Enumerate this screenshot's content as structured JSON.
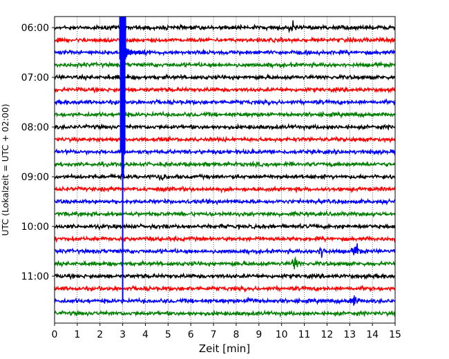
{
  "chart_data": {
    "type": "line",
    "subtype": "helicorder",
    "title": "",
    "xlabel": "Zeit  [min]",
    "ylabel": "UTC (Lokalzeit = UTC + 02:00)",
    "xlim": [
      0,
      15
    ],
    "x_ticks": [
      0,
      1,
      2,
      3,
      4,
      5,
      6,
      7,
      8,
      9,
      10,
      11,
      12,
      13,
      14,
      15
    ],
    "x_tick_labels": [
      "0",
      "1",
      "2",
      "3",
      "4",
      "5",
      "6",
      "7",
      "8",
      "9",
      "10",
      "11",
      "12",
      "13",
      "14",
      "15"
    ],
    "y_tick_labels": [
      "06:00",
      "07:00",
      "08:00",
      "09:00",
      "10:00",
      "11:00"
    ],
    "y_tick_rows": [
      0,
      4,
      8,
      12,
      16,
      20
    ],
    "trace_count": 24,
    "trace_colors": [
      "#000000",
      "#ff0000",
      "#0000ff",
      "#008000"
    ],
    "grid": "vertical dotted lines at each minute",
    "events": [
      {
        "label": "large event",
        "x_min": 3.0,
        "row": 2,
        "extends_to_row": 22,
        "color": "#0000ff"
      },
      {
        "label": "burst",
        "x_min": 4.7,
        "row": 12,
        "color": "#ff0000"
      },
      {
        "label": "burst",
        "x_min": 10.5,
        "row": 0,
        "color": "#000000"
      },
      {
        "label": "spike",
        "x_min": 11.8,
        "row": 18,
        "color": "#0000ff"
      },
      {
        "label": "spike",
        "x_min": 13.3,
        "row": 18,
        "color": "#0000ff"
      },
      {
        "label": "spike",
        "x_min": 10.6,
        "row": 19,
        "color": "#008000"
      },
      {
        "label": "spike",
        "x_min": 13.2,
        "row": 22,
        "color": "#0000ff"
      },
      {
        "label": "burst",
        "x_min": 8.7,
        "row": 22,
        "color": "#0000ff"
      }
    ]
  }
}
